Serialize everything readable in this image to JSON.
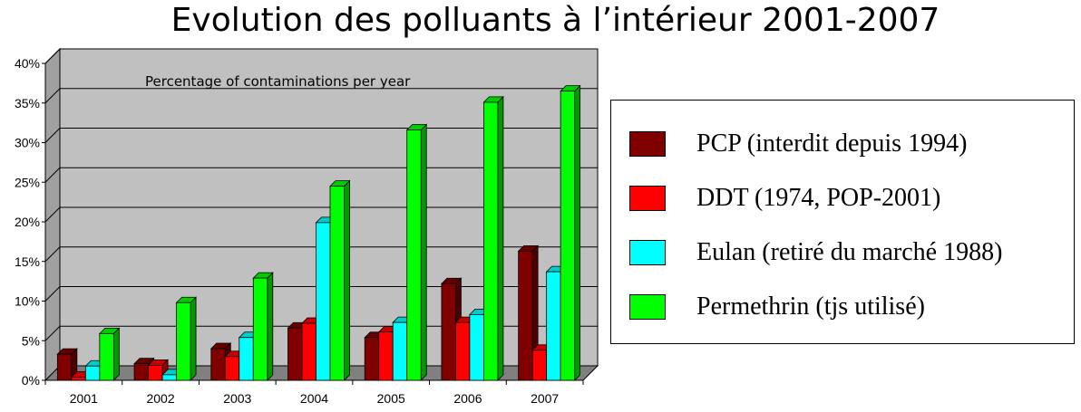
{
  "title": "Evolution des polluants à l’intérieur 2001-2007",
  "chart_data": {
    "type": "bar",
    "annotation": "Percentage of contaminations per year",
    "categories": [
      "2001",
      "2002",
      "2003",
      "2004",
      "2005",
      "2006",
      "2007"
    ],
    "series": [
      {
        "name": "PCP (interdit depuis 1994)",
        "color": "#800000",
        "values": [
          3.3,
          2.1,
          4.0,
          6.6,
          5.4,
          12.2,
          16.3
        ]
      },
      {
        "name": "DDT (1974, POP-2001)",
        "color": "#ff0000",
        "values": [
          0.4,
          1.9,
          3.0,
          7.2,
          6.1,
          7.3,
          3.8
        ]
      },
      {
        "name": "Eulan (retiré du marché 1988)",
        "color": "#00ffff",
        "values": [
          1.8,
          0.7,
          5.4,
          19.9,
          7.3,
          8.3,
          13.7
        ]
      },
      {
        "name": "Permethrin (tjs utilisé)",
        "color": "#00ff00",
        "values": [
          5.9,
          9.8,
          12.9,
          24.5,
          31.6,
          35.1,
          36.5
        ]
      }
    ],
    "yticks": [
      "0%",
      "5%",
      "10%",
      "15%",
      "20%",
      "25%",
      "30%",
      "35%",
      "40%"
    ],
    "ylim": [
      0,
      40
    ],
    "grid": true,
    "legend_position": "right",
    "colors": {
      "wall": "#c0c0c0",
      "floor": "#808080"
    }
  }
}
